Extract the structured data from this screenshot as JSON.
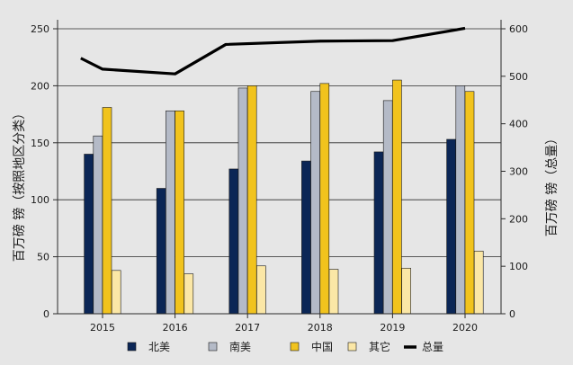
{
  "chart_data": {
    "type": "bar",
    "categories": [
      "2015",
      "2016",
      "2017",
      "2018",
      "2019",
      "2020"
    ],
    "series": [
      {
        "name": "北美",
        "color": "#0b2656",
        "values": [
          140,
          110,
          127,
          134,
          142,
          153
        ]
      },
      {
        "name": "南美",
        "color": "#b4bac7",
        "values": [
          156,
          178,
          198,
          195,
          187,
          200
        ]
      },
      {
        "name": "中国",
        "color": "#f1c31d",
        "values": [
          181,
          178,
          200,
          202,
          205,
          195
        ]
      },
      {
        "name": "其它",
        "color": "#fbe7a6",
        "values": [
          38,
          35,
          42,
          39,
          40,
          55
        ]
      }
    ],
    "line_series": {
      "name": "总量",
      "color": "#000000",
      "axis": "right",
      "values": [
        538,
        515,
        505,
        567,
        574,
        575,
        601
      ]
    },
    "line_x": [
      2014.7,
      2015,
      2016,
      2016.7,
      2018,
      2019,
      2020
    ],
    "ylabel": "百万磅 镑（按照地区分类）",
    "y2label": "百万磅 镑（总量）",
    "ylim": [
      0,
      250
    ],
    "y2lim": [
      0,
      600
    ],
    "yticks": [
      0,
      50,
      100,
      150,
      200,
      250
    ],
    "y2ticks": [
      0,
      100,
      200,
      300,
      400,
      500,
      600
    ],
    "grid": true,
    "legend": "bottom"
  }
}
